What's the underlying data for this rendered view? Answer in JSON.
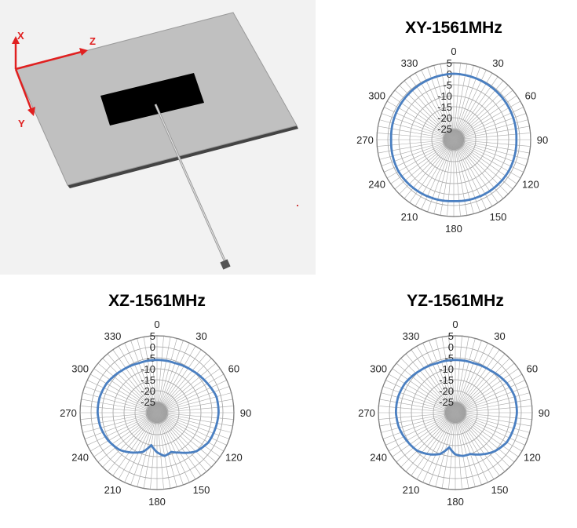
{
  "model": {
    "axis_x_label": "X",
    "axis_y_label": "Y",
    "axis_z_label": "Z"
  },
  "chart_data": [
    {
      "type": "polar-line",
      "title": "XY-1561MHz",
      "angle_ticks": [
        "0",
        "30",
        "60",
        "90",
        "120",
        "150",
        "180",
        "210",
        "240",
        "270",
        "300",
        "330"
      ],
      "radial_ticks": [
        "5",
        "0",
        "-5",
        "-10",
        "-15",
        "-20",
        "-25"
      ],
      "rlim": [
        -30,
        5
      ],
      "angle_direction": "clockwise",
      "angle_zero": "top",
      "series": [
        {
          "color": "#4a7fc1",
          "theta": [
            0,
            30,
            60,
            90,
            120,
            150,
            180,
            210,
            240,
            270,
            300,
            330,
            360
          ],
          "r": [
            0,
            -0.5,
            -1,
            -1.5,
            -1.2,
            -1.5,
            -2,
            -1.5,
            -1,
            -1.5,
            -1,
            -0.5,
            0
          ]
        }
      ]
    },
    {
      "type": "polar-line",
      "title": "XZ-1561MHz",
      "angle_ticks": [
        "0",
        "30",
        "60",
        "90",
        "120",
        "150",
        "180",
        "210",
        "240",
        "270",
        "300",
        "330"
      ],
      "radial_ticks": [
        "5",
        "0",
        "-5",
        "-10",
        "-15",
        "-20",
        "-25"
      ],
      "rlim": [
        -30,
        5
      ],
      "angle_direction": "clockwise",
      "angle_zero": "top",
      "series": [
        {
          "color": "#4a7fc1",
          "theta": [
            0,
            20,
            40,
            60,
            75,
            90,
            105,
            120,
            135,
            150,
            160,
            170,
            180,
            190,
            200,
            210,
            225,
            240,
            255,
            270,
            285,
            300,
            320,
            340,
            360
          ],
          "r": [
            -6,
            -6,
            -5,
            -3.5,
            -2,
            -2,
            -2.5,
            -3,
            -5,
            -9,
            -11,
            -10,
            -12,
            -15,
            -11,
            -9,
            -6,
            -4.5,
            -3.5,
            -3,
            -3,
            -3.5,
            -5,
            -6,
            -6
          ]
        }
      ]
    },
    {
      "type": "polar-line",
      "title": "YZ-1561MHz",
      "angle_ticks": [
        "0",
        "30",
        "60",
        "90",
        "120",
        "150",
        "180",
        "210",
        "240",
        "270",
        "300",
        "330"
      ],
      "radial_ticks": [
        "5",
        "0",
        "-5",
        "-10",
        "-15",
        "-20",
        "-25"
      ],
      "rlim": [
        -30,
        5
      ],
      "angle_direction": "clockwise",
      "angle_zero": "top",
      "series": [
        {
          "color": "#4a7fc1",
          "theta": [
            0,
            20,
            40,
            60,
            75,
            90,
            105,
            120,
            135,
            150,
            160,
            170,
            180,
            190,
            200,
            210,
            225,
            240,
            255,
            270,
            285,
            300,
            320,
            340,
            360
          ],
          "r": [
            -6,
            -6,
            -5,
            -3,
            -2,
            -2,
            -2.5,
            -3,
            -5,
            -8,
            -10,
            -10,
            -11,
            -14,
            -10,
            -8,
            -5.5,
            -4.5,
            -3.5,
            -3,
            -3,
            -3.5,
            -5,
            -6,
            -6
          ]
        }
      ]
    }
  ]
}
